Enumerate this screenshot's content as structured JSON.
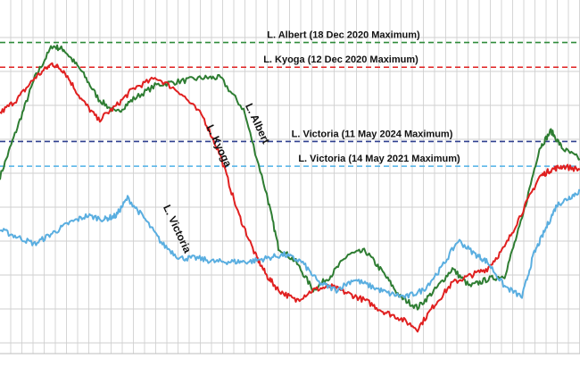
{
  "chart_data": {
    "type": "line",
    "x_range": [
      0,
      100
    ],
    "ylim": [
      0,
      100
    ],
    "grid": true,
    "legend": "none",
    "reference_lines": [
      {
        "label": "L. Albert  (18 Dec 2020 Maximum)",
        "y": 88,
        "color": "#2e8b3a"
      },
      {
        "label": "L. Kyoga (12 Dec 2020 Maximum)",
        "y": 81,
        "color": "#e02020"
      },
      {
        "label": "L. Victoria (11 May 2024 Maximum)",
        "y": 60,
        "color": "#2f3f8f"
      },
      {
        "label": "L. Victoria (14 May 2021 Maximum)",
        "y": 53,
        "color": "#4db0e8"
      }
    ],
    "series": [
      {
        "name": "L. Albert",
        "color": "#2e7d32",
        "x": [
          0,
          3,
          6,
          9,
          11,
          14,
          17,
          20,
          23,
          27,
          31,
          35,
          38,
          42,
          46,
          48,
          51,
          54,
          57,
          60,
          63,
          66,
          69,
          72,
          75,
          78,
          81,
          84,
          87,
          90,
          93,
          95,
          97,
          100
        ],
        "y": [
          50,
          64,
          78,
          87,
          86,
          80,
          72,
          68,
          72,
          76,
          77,
          78,
          78,
          69,
          45,
          30,
          26,
          18,
          22,
          28,
          29,
          23,
          16,
          13,
          18,
          24,
          19,
          21,
          22,
          38,
          58,
          63,
          58,
          55
        ]
      },
      {
        "name": "L. Kyoga",
        "color": "#e02020",
        "x": [
          0,
          3,
          6,
          9,
          11,
          14,
          17,
          20,
          23,
          27,
          31,
          35,
          38,
          41,
          44,
          46,
          48,
          51,
          54,
          57,
          60,
          63,
          66,
          69,
          72,
          75,
          78,
          81,
          84,
          87,
          90,
          93,
          95,
          97,
          100
        ],
        "y": [
          68,
          72,
          78,
          82,
          80,
          72,
          66,
          70,
          75,
          78,
          74,
          67,
          56,
          40,
          28,
          22,
          18,
          15,
          18,
          19,
          17,
          15,
          12,
          10,
          7,
          14,
          20,
          22,
          24,
          30,
          40,
          50,
          52,
          53,
          52
        ]
      },
      {
        "name": "L. Victoria",
        "color": "#5aaee0",
        "x": [
          0,
          3,
          6,
          9,
          12,
          15,
          18,
          20,
          22,
          25,
          28,
          31,
          34,
          37,
          40,
          43,
          46,
          49,
          52,
          55,
          58,
          61,
          64,
          67,
          70,
          73,
          76,
          79,
          82,
          84,
          87,
          90,
          92,
          94,
          96,
          98,
          100
        ],
        "y": [
          35,
          33,
          31,
          34,
          37,
          39,
          38,
          39,
          44,
          38,
          31,
          27,
          27,
          26,
          26,
          26,
          27,
          28,
          26,
          20,
          18,
          21,
          19,
          17,
          16,
          18,
          24,
          32,
          28,
          26,
          19,
          16,
          28,
          35,
          42,
          44,
          46
        ]
      }
    ],
    "inline_labels": [
      {
        "text": "L. Albert",
        "series": "L. Albert"
      },
      {
        "text": "L. Kyoga",
        "series": "L. Kyoga"
      },
      {
        "text": "L. Victoria",
        "series": "L. Victoria"
      }
    ]
  }
}
